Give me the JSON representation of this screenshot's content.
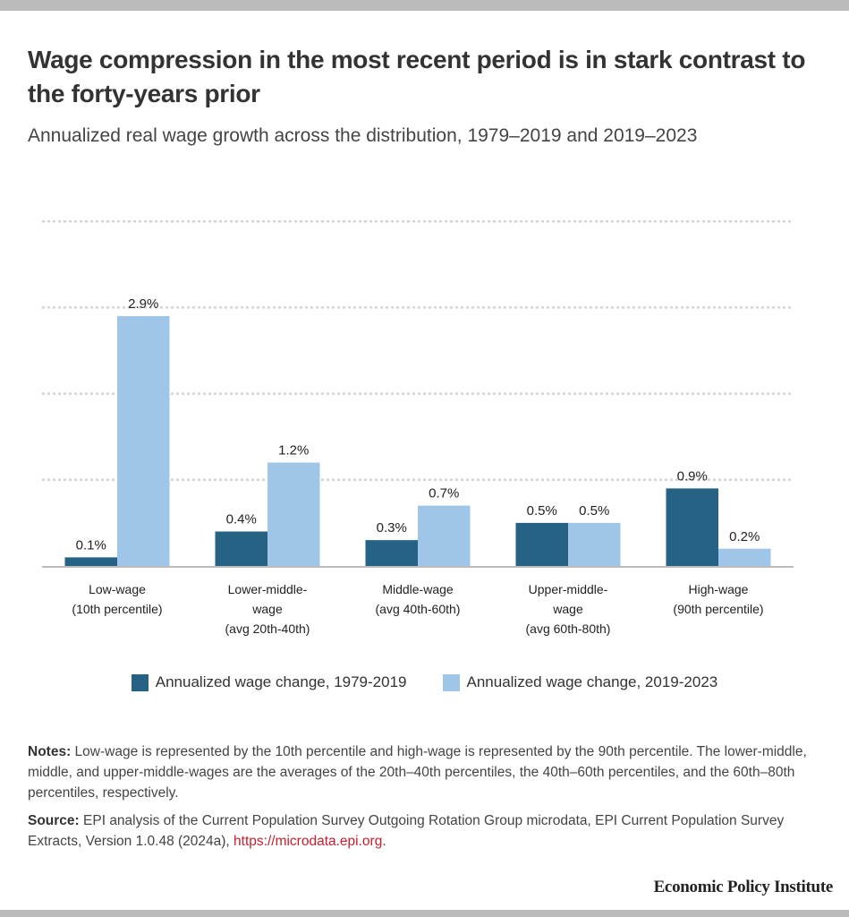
{
  "header": {
    "title": "Wage compression in the most recent period is in stark contrast to the forty-years prior",
    "subtitle": "Annualized real wage growth across the distribution, 1979–2019 and 2019–2023"
  },
  "chart_data": {
    "type": "bar",
    "title": "Wage compression in the most recent period is in stark contrast to the forty-years prior",
    "subtitle": "Annualized real wage growth across the distribution, 1979–2019 and 2019–2023",
    "xlabel": "",
    "ylabel": "",
    "ylim": [
      0,
      4
    ],
    "yticks": [
      0,
      1,
      2,
      3,
      4
    ],
    "grid": true,
    "y_tick_labels_shown": false,
    "legend_position": "bottom-center",
    "categories": [
      [
        "Low-wage",
        "(10th percentile)"
      ],
      [
        "Lower-middle-",
        "wage",
        "(avg 20th-40th)"
      ],
      [
        "Middle-wage",
        "(avg 40th-60th)"
      ],
      [
        "Upper-middle-",
        "wage",
        "(avg 60th-80th)"
      ],
      [
        "High-wage",
        "(90th percentile)"
      ]
    ],
    "series": [
      {
        "name": "Annualized wage change, 1979-2019",
        "color": "#256284",
        "values": [
          0.1,
          0.4,
          0.3,
          0.5,
          0.9
        ],
        "labels": [
          "0.1%",
          "0.4%",
          "0.3%",
          "0.5%",
          "0.9%"
        ]
      },
      {
        "name": "Annualized wage change, 2019-2023",
        "color": "#9fc5e8",
        "values": [
          2.9,
          1.2,
          0.7,
          0.5,
          0.2
        ],
        "labels": [
          "2.9%",
          "1.2%",
          "0.7%",
          "0.5%",
          "0.2%"
        ]
      }
    ]
  },
  "notes": {
    "notes_label": "Notes:",
    "notes_text": " Low-wage is represented by the 10th percentile and high-wage is represented by the 90th percentile. The lower-middle, middle, and upper-middle-wages are the averages of the 20th–40th percentiles, the 40th–60th percentiles, and the 60th–80th percentiles, respectively.",
    "source_label": "Source:",
    "source_text": " EPI analysis of the Current Population Survey Outgoing Rotation Group microdata, EPI Current Population Survey Extracts, Version 1.0.48 (2024a), ",
    "source_link": "https://microdata.epi.org",
    "source_end": "."
  },
  "branding": {
    "organization": "Economic Policy Institute"
  }
}
